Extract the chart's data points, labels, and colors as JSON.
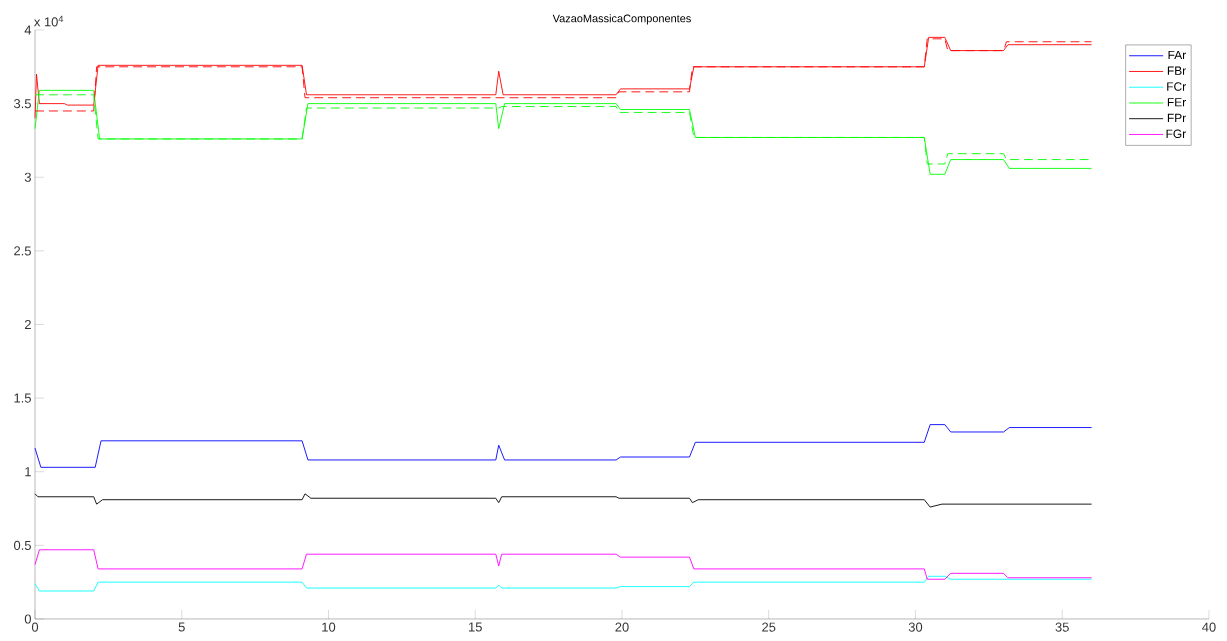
{
  "chart_data": {
    "type": "line",
    "title": "VazaoMassicaComponentes",
    "annotations": [
      "x 10$^{4}$"
    ],
    "xlim": [
      0,
      40
    ],
    "xticks": [
      0,
      5,
      10,
      15,
      20,
      25,
      30,
      35,
      40
    ],
    "ylim": [
      0,
      4
    ],
    "yticks": [
      0,
      0.5,
      1,
      1.5,
      2,
      2.5,
      3,
      3.5,
      4
    ],
    "legend": "top right",
    "series": [
      {
        "name": "FAr",
        "color": "#0000ff",
        "line_style": "solid",
        "x": [
          0,
          0.2,
          2.05,
          2.25,
          9.1,
          9.3,
          15.7,
          15.8,
          16.0,
          19.8,
          19.95,
          22.3,
          22.5,
          30.3,
          30.5,
          31.0,
          31.2,
          33.0,
          33.2,
          36
        ],
        "values": [
          1.16,
          1.03,
          1.03,
          1.21,
          1.21,
          1.08,
          1.08,
          1.18,
          1.08,
          1.08,
          1.1,
          1.1,
          1.2,
          1.2,
          1.32,
          1.32,
          1.27,
          1.27,
          1.3,
          1.3
        ]
      },
      {
        "name": "FBr",
        "color": "#ff0000",
        "line_style": "solid",
        "x": [
          0,
          0.05,
          0.15,
          1.0,
          1.1,
          2.0,
          2.15,
          9.1,
          9.25,
          15.7,
          15.8,
          15.95,
          19.8,
          19.95,
          22.3,
          22.45,
          30.3,
          30.45,
          31.0,
          31.2,
          33.0,
          33.15,
          36
        ],
        "values": [
          3.4,
          3.7,
          3.5,
          3.5,
          3.49,
          3.49,
          3.76,
          3.76,
          3.56,
          3.56,
          3.72,
          3.56,
          3.56,
          3.6,
          3.6,
          3.75,
          3.75,
          3.95,
          3.95,
          3.86,
          3.86,
          3.9,
          3.9
        ]
      },
      {
        "name": "FCr",
        "color": "#00ffff",
        "line_style": "solid",
        "x": [
          0,
          0.15,
          2.0,
          2.15,
          9.1,
          9.25,
          15.7,
          15.8,
          15.9,
          19.8,
          19.95,
          22.3,
          22.45,
          30.3,
          30.45,
          31.0,
          31.2,
          36
        ],
        "values": [
          0.24,
          0.19,
          0.19,
          0.25,
          0.25,
          0.21,
          0.21,
          0.23,
          0.21,
          0.21,
          0.22,
          0.22,
          0.25,
          0.25,
          0.29,
          0.29,
          0.27,
          0.27
        ]
      },
      {
        "name": "FEr",
        "color": "#00ff00",
        "line_style": "solid",
        "x": [
          0,
          0.15,
          2.0,
          2.2,
          9.1,
          9.3,
          15.7,
          15.8,
          16.0,
          19.8,
          19.95,
          22.3,
          22.5,
          30.3,
          30.5,
          31.0,
          31.2,
          33.0,
          33.2,
          36
        ],
        "values": [
          3.33,
          3.59,
          3.59,
          3.26,
          3.26,
          3.5,
          3.5,
          3.33,
          3.5,
          3.5,
          3.46,
          3.46,
          3.27,
          3.27,
          3.02,
          3.02,
          3.12,
          3.12,
          3.06,
          3.06
        ]
      },
      {
        "name": "FPr",
        "color": "#000000",
        "line_style": "solid",
        "x": [
          0,
          0.1,
          2.0,
          2.1,
          2.3,
          9.1,
          9.2,
          9.4,
          15.7,
          15.8,
          15.9,
          19.8,
          19.9,
          22.3,
          22.4,
          22.6,
          30.3,
          30.5,
          30.9,
          36
        ],
        "values": [
          0.85,
          0.83,
          0.83,
          0.78,
          0.81,
          0.81,
          0.85,
          0.82,
          0.82,
          0.79,
          0.83,
          0.83,
          0.82,
          0.82,
          0.79,
          0.81,
          0.81,
          0.76,
          0.78,
          0.78
        ]
      },
      {
        "name": "FGr",
        "color": "#ff00ff",
        "line_style": "solid",
        "x": [
          0,
          0.15,
          2.0,
          2.15,
          9.1,
          9.25,
          15.7,
          15.8,
          15.9,
          19.8,
          19.95,
          22.3,
          22.45,
          30.3,
          30.4,
          31.0,
          31.2,
          33.0,
          33.15,
          36
        ],
        "values": [
          0.37,
          0.47,
          0.47,
          0.34,
          0.34,
          0.44,
          0.44,
          0.36,
          0.44,
          0.44,
          0.42,
          0.42,
          0.34,
          0.34,
          0.27,
          0.27,
          0.31,
          0.31,
          0.28,
          0.28
        ]
      },
      {
        "color": "#ff0000",
        "line_style": "dashed",
        "x": [
          0,
          2.0,
          2.1,
          9.1,
          9.2,
          19.8,
          19.9,
          22.3,
          22.4,
          30.3,
          30.4,
          31.0,
          31.1,
          33.0,
          33.1,
          36
        ],
        "values": [
          3.45,
          3.45,
          3.75,
          3.75,
          3.54,
          3.54,
          3.58,
          3.58,
          3.75,
          3.75,
          3.94,
          3.94,
          3.86,
          3.86,
          3.92,
          3.92
        ]
      },
      {
        "color": "#00ff00",
        "line_style": "dashed",
        "x": [
          0,
          2.0,
          2.15,
          9.1,
          9.25,
          15.8,
          15.9,
          19.8,
          19.9,
          22.3,
          22.45,
          30.3,
          30.4,
          31.0,
          31.1,
          33.0,
          33.1,
          36
        ],
        "values": [
          3.56,
          3.56,
          3.26,
          3.26,
          3.47,
          3.47,
          3.48,
          3.48,
          3.44,
          3.44,
          3.27,
          3.27,
          3.09,
          3.09,
          3.16,
          3.16,
          3.12,
          3.12
        ]
      }
    ]
  }
}
